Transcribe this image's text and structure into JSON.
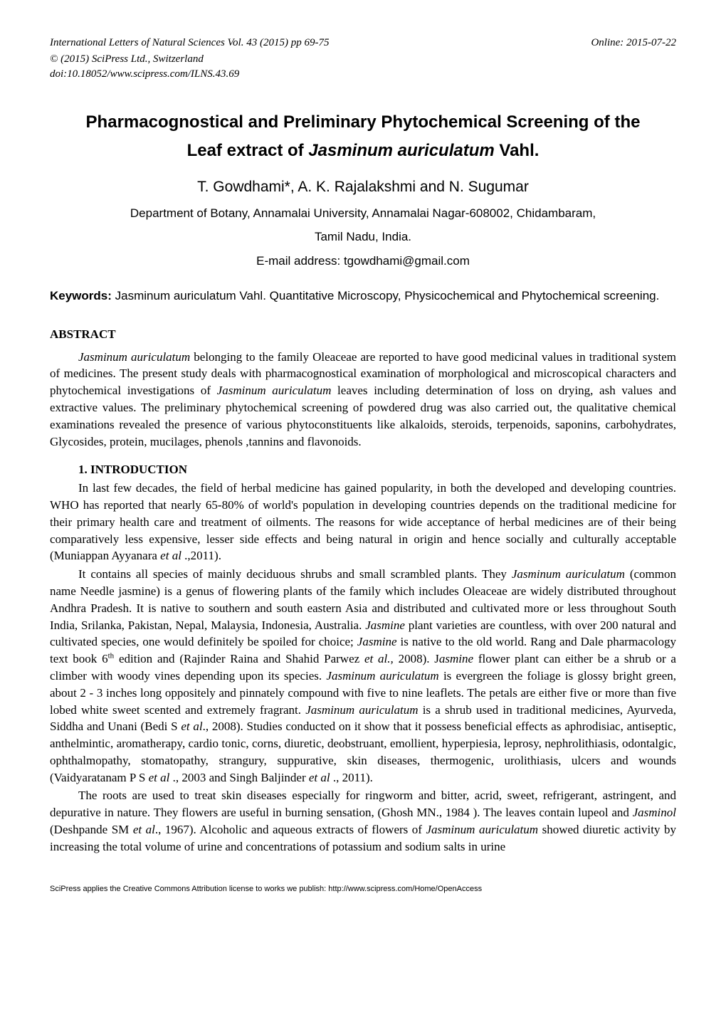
{
  "header": {
    "journal_line": "International Letters of Natural Sciences Vol. 43 (2015) pp 69-75",
    "online_line": "Online: 2015-07-22",
    "copyright": "© (2015) SciPress Ltd., Switzerland",
    "doi": "doi:10.18052/www.scipress.com/ILNS.43.69"
  },
  "title": {
    "line1": "Pharmacognostical and Preliminary Phytochemical Screening of the",
    "line2_prefix": "Leaf extract of ",
    "line2_species": "Jasminum auriculatum",
    "line2_suffix": " Vahl."
  },
  "authors": "T. Gowdhami*, A. K. Rajalakshmi and N. Sugumar",
  "affiliation": {
    "line1": "Department of Botany, Annamalai University, Annamalai Nagar-608002, Chidambaram,",
    "line2": "Tamil Nadu, India."
  },
  "email": "E-mail address:  tgowdhami@gmail.com",
  "keywords": {
    "label": "Keywords:",
    "text": " Jasminum auriculatum  Vahl. Quantitative Microscopy,  Physicochemical and Phytochemical screening."
  },
  "abstract": {
    "heading": "ABSTRACT",
    "species": "Jasminum auriculatum",
    "text_after_species": " belonging to the family Oleaceae are reported to have good medicinal values in traditional system of medicines. The present study deals with pharmacognostical examination of morphological and microscopical characters and phytochemical investigations of ",
    "species2": "Jasminum auriculatum",
    "text_after_species2": " leaves including determination of loss on drying, ash values and extractive values. The preliminary phytochemical screening of powdered drug was also carried out, the qualitative chemical examinations revealed the presence of various phytoconstituents like alkaloids, steroids, terpenoids,  saponins, carbohydrates, Glycosides, protein, mucilages, phenols  ,tannins and flavonoids."
  },
  "intro": {
    "heading": "1.  INTRODUCTION",
    "p1_a": " In last few decades, the field of herbal medicine has gained popularity, in both the developed and developing countries. WHO has reported that nearly 65-80% of world's population in developing countries depends on the traditional medicine for their primary health care and treatment of oilments. The reasons for wide acceptance of herbal medicines are of their being comparatively less expensive, lesser side effects and being natural in origin and hence socially and culturally acceptable (Muniappan Ayyanara  ",
    "p1_b": "et al",
    "p1_c": " .,2011).",
    "p2_a": "It contains all species of mainly deciduous shrubs and small scrambled plants. They ",
    "p2_b": "Jasminum auriculatum",
    "p2_c": " (common name Needle jasmine) is a genus of flowering plants of the family which includes Oleaceae are widely distributed throughout Andhra Pradesh.  It is native to southern and south eastern Asia and distributed and cultivated more or less throughout South India, Srilanka, Pakistan, Nepal, Malaysia, Indonesia, Australia. ",
    "p2_d": "Jasmine",
    "p2_e": " plant varieties are countless, with over 200 natural and cultivated species, one would definitely be spoiled for choice; ",
    "p2_f": "Jasmine",
    "p2_g": " is native to the old world. Rang and Dale pharmacology text book 6",
    "p2_sup": "th",
    "p2_h": " edition and (Rajinder Raina and Shahid Parwez ",
    "p2_i": "et al.,",
    "p2_j": " 2008). J",
    "p2_k": "asmine",
    "p2_l": " flower plant can either be a shrub or a climber with woody vines depending upon its species. ",
    "p2_m": "Jasminum auriculatum",
    "p2_n": " is evergreen the foliage is glossy bright green, about 2 - 3 inches long oppositely and pinnately compound with five to nine leaflets. The petals are either five or more than five lobed white sweet scented and extremely fragrant. ",
    "p2_o": "Jasminum auriculatum",
    "p2_p": " is a shrub used in traditional medicines, Ayurveda, Siddha and Unani (Bedi S ",
    "p2_q": "et al",
    "p2_r": "., 2008). Studies conducted on it show that it possess beneficial effects as aphrodisiac, antiseptic, anthelmintic, aromatherapy, cardio tonic, corns, diuretic, deobstruant, emollient, hyperpiesia, leprosy, nephrolithiasis, odontalgic, ophthalmopathy, stomatopathy, strangury, suppurative, skin diseases, thermogenic, urolithiasis, ulcers and wounds (Vaidyaratanam P S ",
    "p2_s": "et al",
    "p2_t": " ., 2003  and  Singh Baljinder ",
    "p2_u": "et al",
    "p2_v": " ., 2011).",
    "p3_a": "The roots are used to treat skin diseases especially for ringworm and bitter, acrid, sweet, refrigerant, astringent, and depurative in nature. They flowers are useful in burning sensation, (Ghosh MN., 1984 ). The leaves contain lupeol and ",
    "p3_b": "Jasminol",
    "p3_c": " (Deshpande SM ",
    "p3_d": "et al",
    "p3_e": "., 1967). Alcoholic and aqueous extracts of flowers of ",
    "p3_f": "Jasminum auriculatum",
    "p3_g": " showed diuretic activity by increasing the total volume of urine and concentrations of potassium and sodium salts in urine"
  },
  "footer": "SciPress applies the Creative Commons Attribution license to works we publish: http://www.scipress.com/Home/OpenAccess"
}
